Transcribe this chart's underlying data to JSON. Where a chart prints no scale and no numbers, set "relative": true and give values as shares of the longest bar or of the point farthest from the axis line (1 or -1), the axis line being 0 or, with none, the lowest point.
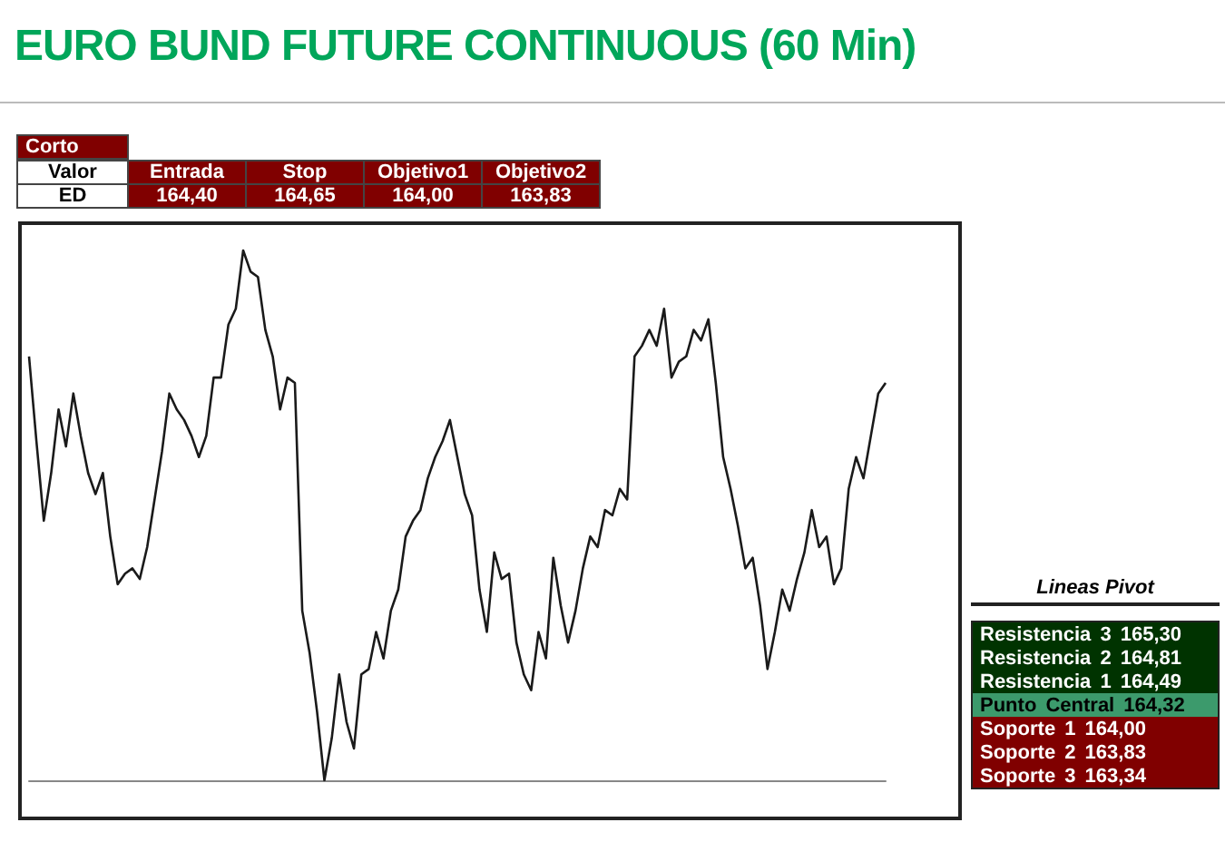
{
  "chart_data": [
    {
      "type": "other",
      "title": "Corto",
      "annotations": [
        "Valor",
        "Entrada",
        "Stop",
        "Objetivo1",
        "Objetivo2",
        "ED",
        "164,40",
        "164,65",
        "164,00",
        "163,83"
      ]
    },
    {
      "type": "line",
      "title": "EURO BUND FUTURE CONTINUOUS (60 Min)",
      "relative": true,
      "color": "#1a1a1a",
      "marker": "none",
      "grid": false,
      "categories": [
        null,
        null,
        null,
        null,
        null,
        null,
        null,
        null,
        null,
        null,
        null,
        null,
        null,
        null,
        null,
        null,
        null,
        null,
        null,
        null,
        null,
        null,
        null,
        null,
        null,
        null,
        null,
        null,
        null,
        null,
        null,
        null,
        null,
        null,
        null,
        null,
        null,
        null,
        null,
        null,
        null,
        null,
        null,
        null,
        null,
        null,
        null,
        null,
        null,
        null,
        null,
        null,
        null,
        null,
        null,
        null,
        null,
        null,
        null,
        null,
        null,
        null,
        null,
        null,
        null,
        null,
        null,
        null,
        null,
        null,
        null,
        null,
        null,
        null,
        null,
        null,
        null,
        null,
        null,
        null,
        null,
        null,
        null,
        null,
        null,
        null,
        null,
        null,
        null,
        null,
        null,
        null,
        null,
        null,
        null,
        null,
        null,
        null,
        null,
        null,
        null,
        null,
        null,
        null,
        null,
        null,
        null,
        null,
        null,
        null,
        null,
        null,
        null,
        null,
        null,
        null,
        null
      ],
      "values": [
        0.8,
        0.64,
        0.49,
        0.58,
        0.7,
        0.63,
        0.73,
        0.65,
        0.58,
        0.54,
        0.58,
        0.46,
        0.37,
        0.39,
        0.4,
        0.38,
        0.44,
        0.53,
        0.62,
        0.73,
        0.7,
        0.68,
        0.65,
        0.61,
        0.65,
        0.76,
        0.76,
        0.86,
        0.89,
        1,
        0.96,
        0.95,
        0.85,
        0.8,
        0.7,
        0.76,
        0.75,
        0.32,
        0.24,
        0.13,
        0,
        0.08,
        0.2,
        0.11,
        0.06,
        0.2,
        0.21,
        0.28,
        0.23,
        0.32,
        0.36,
        0.46,
        0.49,
        0.51,
        0.57,
        0.61,
        0.64,
        0.68,
        0.61,
        0.54,
        0.5,
        0.36,
        0.28,
        0.43,
        0.38,
        0.39,
        0.26,
        0.2,
        0.17,
        0.28,
        0.23,
        0.42,
        0.33,
        0.26,
        0.32,
        0.4,
        0.46,
        0.44,
        0.51,
        0.5,
        0.55,
        0.53,
        0.8,
        0.82,
        0.85,
        0.82,
        0.89,
        0.76,
        0.79,
        0.8,
        0.85,
        0.83,
        0.87,
        0.75,
        0.61,
        0.55,
        0.48,
        0.4,
        0.42,
        0.33,
        0.21,
        0.28,
        0.36,
        0.32,
        0.38,
        0.43,
        0.51,
        0.44,
        0.46,
        0.37,
        0.4,
        0.55,
        0.61,
        0.57,
        0.65,
        0.73,
        0.75
      ]
    },
    {
      "type": "other",
      "title": "Lineas Pivot",
      "annotations": [
        "Resistencia 3 165,30",
        "Resistencia 2 164,81",
        "Resistencia 1 164,49",
        "Punto Central 164,32",
        "Soporte 1 164,00",
        "Soporte 2 163,83",
        "Soporte 3 163,34"
      ]
    }
  ]
}
